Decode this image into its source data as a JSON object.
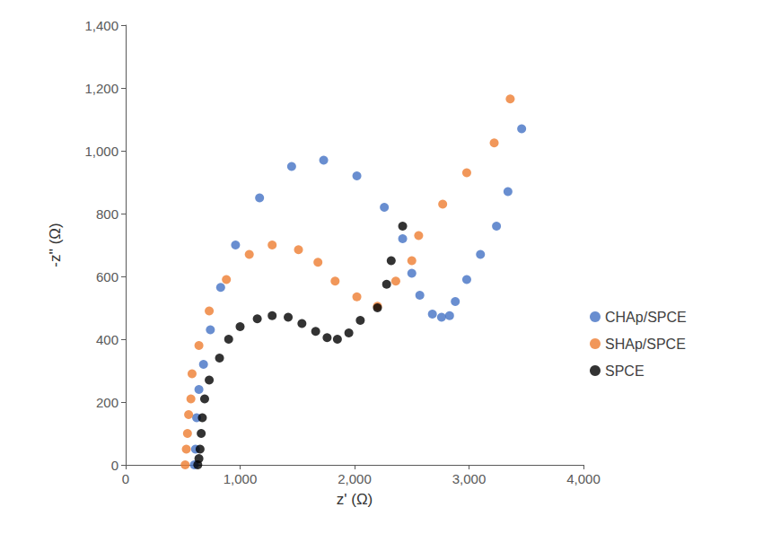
{
  "chart_data": {
    "type": "scatter",
    "x_label": "z' (Ω)",
    "y_label": "-z'' (Ω)",
    "xlim": [
      0,
      4000
    ],
    "xticks": [
      0,
      1000,
      2000,
      3000,
      4000
    ],
    "ylim": [
      0,
      1400
    ],
    "yticks": [
      0,
      200,
      400,
      600,
      800,
      1000,
      1200,
      1400
    ],
    "grid": false,
    "legend": "right",
    "marker": "circle",
    "series": [
      {
        "name": "CHAp/SPCE",
        "color": "#4472c4",
        "x": [
          600,
          610,
          620,
          640,
          680,
          740,
          830,
          960,
          1170,
          1450,
          1730,
          2020,
          2260,
          2420,
          2500,
          2570,
          2680,
          2760,
          2830,
          2880,
          2980,
          3100,
          3240,
          3340,
          3460
        ],
        "values": [
          0,
          50,
          150,
          240,
          320,
          430,
          565,
          700,
          850,
          950,
          970,
          920,
          820,
          720,
          610,
          540,
          480,
          470,
          475,
          520,
          590,
          670,
          760,
          870,
          1070
        ]
      },
      {
        "name": "SHAp/SPCE",
        "color": "#ed7d31",
        "x": [
          520,
          530,
          540,
          550,
          570,
          580,
          640,
          730,
          880,
          1080,
          1280,
          1510,
          1680,
          1830,
          2020,
          2200,
          2360,
          2500,
          2560,
          2770,
          2980,
          3220,
          3360
        ],
        "values": [
          0,
          50,
          100,
          160,
          210,
          290,
          380,
          490,
          590,
          670,
          700,
          685,
          645,
          585,
          535,
          505,
          585,
          650,
          730,
          830,
          930,
          1025,
          1165
        ]
      },
      {
        "name": "SPCE",
        "color": "#000000",
        "x": [
          630,
          640,
          650,
          660,
          670,
          690,
          730,
          820,
          900,
          1000,
          1150,
          1280,
          1420,
          1540,
          1660,
          1760,
          1850,
          1950,
          2050,
          2200,
          2280,
          2320,
          2420
        ],
        "values": [
          0,
          20,
          50,
          100,
          150,
          210,
          270,
          340,
          400,
          440,
          465,
          475,
          470,
          450,
          425,
          405,
          400,
          420,
          460,
          500,
          575,
          650,
          760
        ]
      }
    ]
  }
}
